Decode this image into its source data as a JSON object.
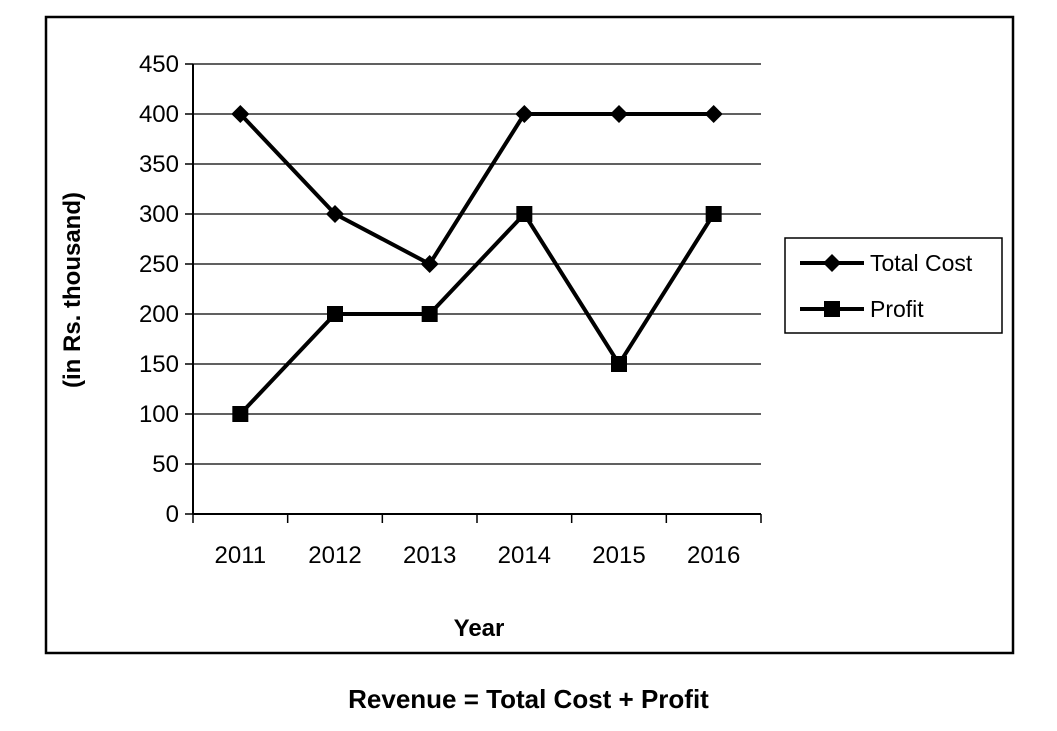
{
  "footer_note": "Revenue = Total Cost + Profit",
  "chart_data": {
    "type": "line",
    "title": "",
    "xlabel": "Year",
    "ylabel": "(in Rs. thousand)",
    "categories": [
      "2011",
      "2012",
      "2013",
      "2014",
      "2015",
      "2016"
    ],
    "ylim": [
      0,
      450
    ],
    "y_ticks": [
      0,
      50,
      100,
      150,
      200,
      250,
      300,
      350,
      400,
      450
    ],
    "grid": true,
    "legend_position": "right",
    "series": [
      {
        "name": "Total Cost",
        "marker": "diamond",
        "color": "#000000",
        "values": [
          400,
          300,
          250,
          400,
          400,
          400
        ]
      },
      {
        "name": "Profit",
        "marker": "square",
        "color": "#000000",
        "values": [
          100,
          200,
          200,
          300,
          150,
          300
        ]
      }
    ]
  }
}
